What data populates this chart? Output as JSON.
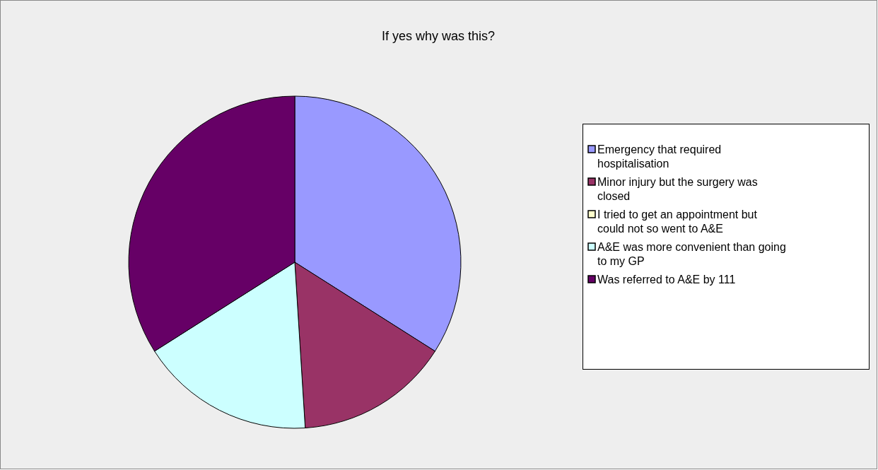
{
  "chart_data": {
    "type": "pie",
    "title": "If yes why was this?",
    "categories": [
      "Emergency that required hospitalisation",
      "Minor injury but the surgery was closed",
      "I tried to get an appointment but could not so went to A&E",
      "A&E was more convenient than going to my GP",
      "Was referred to A&E by 111"
    ],
    "values": [
      34,
      15,
      0,
      17,
      34
    ],
    "colors": [
      "#9999ff",
      "#993366",
      "#ffffcc",
      "#ccffff",
      "#660066"
    ],
    "legend": "right"
  }
}
